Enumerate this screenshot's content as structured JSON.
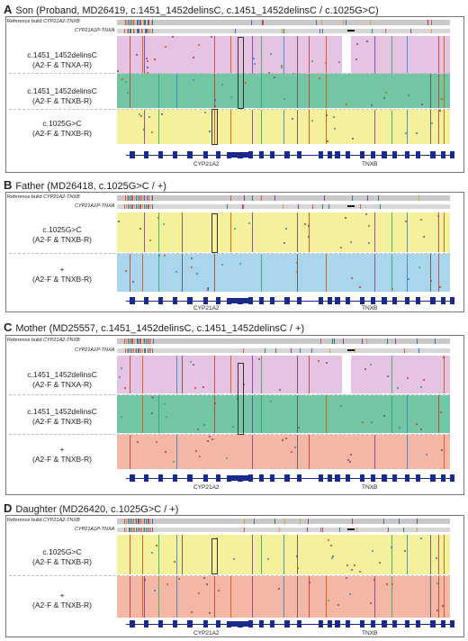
{
  "ref_labels": {
    "line1_prefix": "Reference build ",
    "line1_genes": "CYP21A2-TNXB",
    "line2_genes": "CYP21A1P-TNXA"
  },
  "gene_labels": {
    "left": "CYP21A2",
    "right": "TNXB"
  },
  "colors": {
    "pink": "#e6c3e3",
    "green": "#73c6a4",
    "yellow": "#f4f09c",
    "blue": "#a9d6ec",
    "salmon": "#f4b7a6",
    "gene": "#1a2a8c"
  },
  "panels": [
    {
      "letter": "A",
      "title": "Son (Proband, MD26419, c.1451_1452delinsC, c.1451_1452delinsC / c.1025G>C)",
      "tracks": [
        {
          "line1": "c.1451_1452delinsC",
          "line2": "(A2-F & TNXA-R)",
          "color": "pink"
        },
        {
          "line1": "c.1451_1452delinsC",
          "line2": "(A2-F & TNXB-R)",
          "color": "green"
        },
        {
          "line1": "c.1025G>C",
          "line2": "(A2-F & TNXB-R)",
          "color": "yellow"
        }
      ]
    },
    {
      "letter": "B",
      "title": "Father (MD26418, c.1025G>C / +)",
      "tracks": [
        {
          "line1": "c.1025G>C",
          "line2": "(A2-F & TNXB-R)",
          "color": "yellow"
        },
        {
          "line1": "+",
          "line2": "(A2-F & TNXB-R)",
          "color": "blue"
        }
      ]
    },
    {
      "letter": "C",
      "title": "Mother (MD25557, c.1451_1452delinsC, c.1451_1452delinsC / +)",
      "tracks": [
        {
          "line1": "c.1451_1452delinsC",
          "line2": "(A2-F & TNXA-R)",
          "color": "pink"
        },
        {
          "line1": "c.1451_1452delinsC",
          "line2": "(A2-F & TNXB-R)",
          "color": "green"
        },
        {
          "line1": "+",
          "line2": "(A2-F & TNXB-R)",
          "color": "salmon"
        }
      ]
    },
    {
      "letter": "D",
      "title": "Daughter (MD26420, c.1025G>C / +)",
      "tracks": [
        {
          "line1": "c.1025G>C",
          "line2": "(A2-F & TNXB-R)",
          "color": "yellow"
        },
        {
          "line1": "+",
          "line2": "(A2-F & TNXB-R)",
          "color": "salmon"
        }
      ]
    }
  ]
}
